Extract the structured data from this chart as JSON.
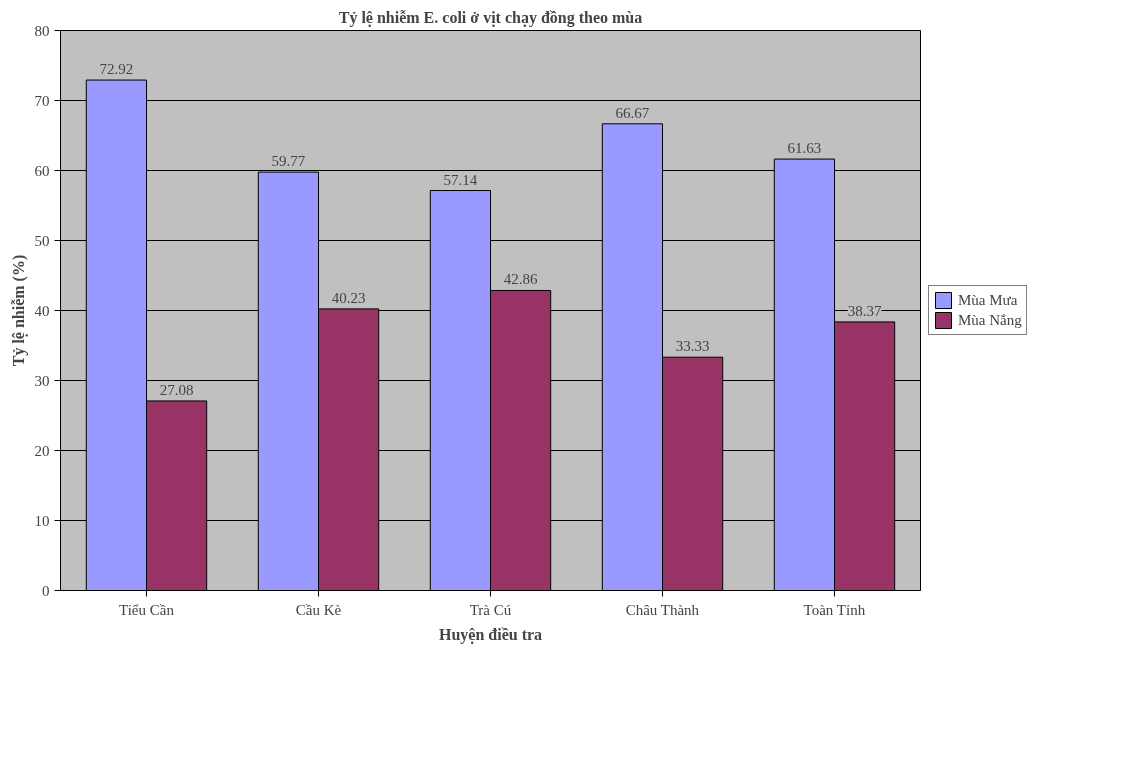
{
  "chart_data": {
    "type": "bar",
    "title": "Tỷ lệ nhiễm E. coli ở vịt chạy đồng theo mùa",
    "xlabel": "Huyện điều tra",
    "ylabel": "Tỷ lệ nhiễm (%)",
    "categories": [
      "Tiểu Cần",
      "Cầu Kè",
      "Trà Cú",
      "Châu Thành",
      "Toàn Tỉnh"
    ],
    "series": [
      {
        "name": "Mùa Mưa",
        "color": "#9999ff",
        "values": [
          72.92,
          59.77,
          57.14,
          66.67,
          61.63
        ]
      },
      {
        "name": "Mùa Nắng",
        "color": "#993366",
        "values": [
          27.08,
          40.23,
          42.86,
          33.33,
          38.37
        ]
      }
    ],
    "ylim": [
      0,
      80
    ],
    "yticks": [
      0,
      10,
      20,
      30,
      40,
      50,
      60,
      70,
      80
    ],
    "grid": "y",
    "legend": "right",
    "data_labels": true
  }
}
